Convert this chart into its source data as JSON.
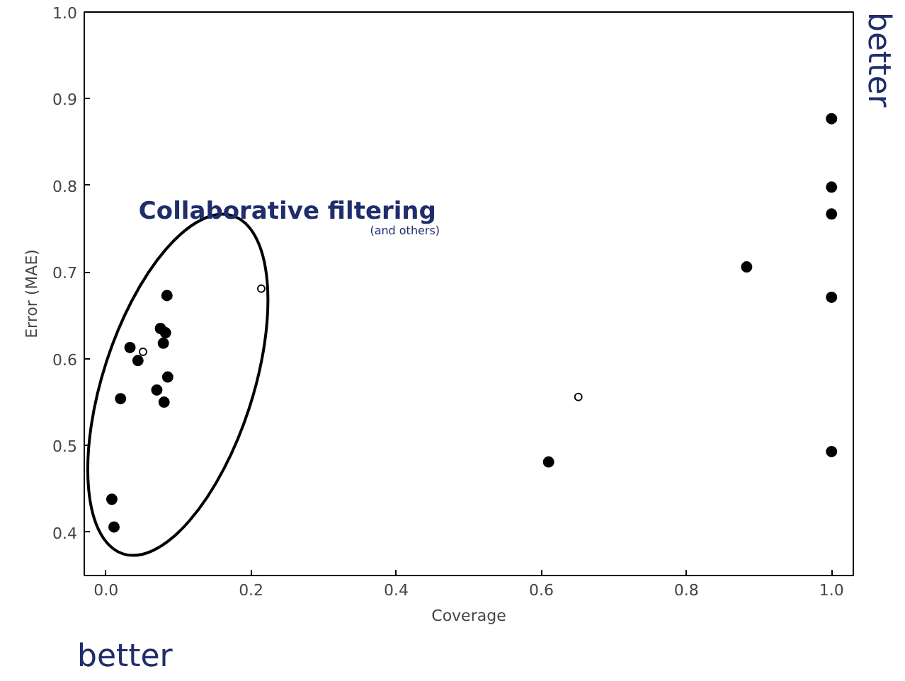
{
  "chart_data": {
    "type": "scatter",
    "xlabel": "Coverage",
    "ylabel": "Error (MAE)",
    "xlim": [
      -0.03,
      1.03
    ],
    "ylim": [
      0.35,
      1.0
    ],
    "xticks": [
      {
        "value": 0,
        "label": "0.0"
      },
      0.2,
      0.4,
      0.6,
      0.8,
      {
        "value": 1,
        "label": "1.0"
      }
    ],
    "yticks": [
      0.4,
      0.5,
      0.6,
      0.7,
      0.8,
      0.9,
      {
        "value": 1,
        "label": "1.0"
      }
    ],
    "grid": false,
    "marker": "circle",
    "series": [
      {
        "color": "#000000",
        "x": [
          0.008,
          0.011,
          0.02,
          0.033,
          0.044,
          0.084,
          0.075,
          0.082,
          0.079,
          0.07,
          0.085,
          0.08,
          1.0,
          1.0,
          1.0,
          0.883,
          1.0,
          1.0,
          0.61
        ],
        "values": [
          0.438,
          0.406,
          0.554,
          0.613,
          0.598,
          0.673,
          0.635,
          0.63,
          0.618,
          0.564,
          0.579,
          0.55,
          0.877,
          0.798,
          0.767,
          0.706,
          0.671,
          0.493,
          0.481
        ]
      },
      {
        "color": "#ffffff",
        "x": [
          0.051,
          0.214,
          0.651
        ],
        "values": [
          0.608,
          0.681,
          0.556
        ]
      }
    ],
    "annotations": [
      "Collaborative filtering",
      "(and others)",
      "better",
      "better"
    ]
  }
}
